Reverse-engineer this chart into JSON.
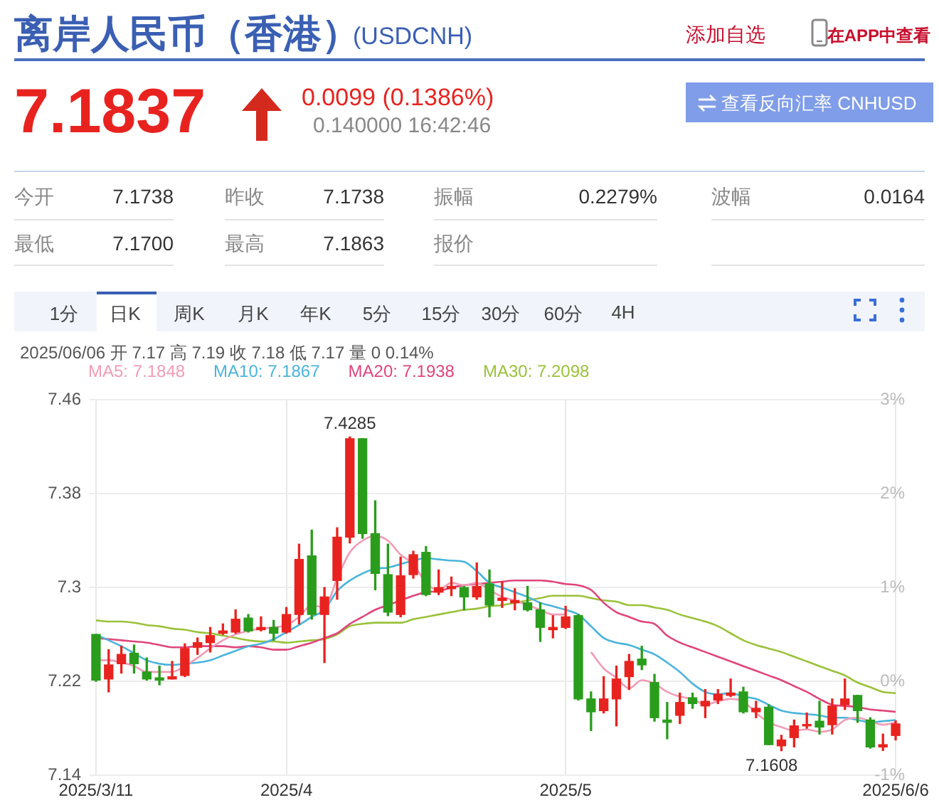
{
  "chart_data": {
    "type": "candlestick",
    "title": "离岸人民币（香港）",
    "subtitle": "(USDCNH)",
    "annotations": [
      "添加自选",
      "在APP中查看",
      "7.1837",
      "0.0099 (0.1386%)",
      "0.140000 16:42:46",
      "查看反向汇率 CNHUSD",
      "今开",
      "7.1738",
      "昨收",
      "7.1738",
      "振幅",
      "0.2279%",
      "波幅",
      "0.0164",
      "最低",
      "7.1700",
      "最高",
      "7.1863",
      "报价",
      "1分",
      "日K",
      "周K",
      "月K",
      "年K",
      "5分",
      "15分",
      "30分",
      "60分",
      "4H",
      "2025/06/06 开 7.17 高 7.19 收 7.18 低 7.17 量 0 0.14%",
      {
        "text": "7.4285",
        "y": 7.4285
      },
      "7.1608"
    ],
    "categories": [
      "2025/3/11",
      null,
      null,
      null,
      null,
      null,
      null,
      null,
      null,
      null,
      null,
      null,
      null,
      null,
      null,
      "2025/4",
      null,
      null,
      null,
      null,
      null,
      null,
      null,
      null,
      null,
      null,
      null,
      null,
      null,
      null,
      null,
      null,
      null,
      null,
      null,
      null,
      null,
      "2025/5",
      null,
      null,
      null,
      null,
      null,
      null,
      null,
      null,
      null,
      null,
      null,
      null,
      null,
      null,
      null,
      null,
      null,
      null,
      null,
      null,
      null,
      null,
      null,
      null,
      null,
      "2025/6/6"
    ],
    "series": [
      {
        "ohlc": [
          [
            7.26,
            7.26,
            7.22,
            7.221
          ],
          [
            7.222,
            7.247,
            7.211,
            7.234
          ],
          [
            7.235,
            7.25,
            7.227,
            7.243
          ],
          [
            7.244,
            7.251,
            7.227,
            7.235
          ],
          [
            7.228,
            7.24,
            7.221,
            7.222
          ],
          [
            7.223,
            7.233,
            7.217,
            7.221
          ],
          [
            7.222,
            7.237,
            7.222,
            7.224
          ],
          [
            7.225,
            7.252,
            7.224,
            7.248
          ],
          [
            7.249,
            7.257,
            7.243,
            7.253
          ],
          [
            7.253,
            7.266,
            7.245,
            7.259
          ],
          [
            7.261,
            7.269,
            7.26,
            7.263
          ],
          [
            7.262,
            7.281,
            7.261,
            7.273
          ],
          [
            7.274,
            7.277,
            7.262,
            7.263
          ],
          [
            7.264,
            7.275,
            7.263,
            7.266
          ],
          [
            7.266,
            7.272,
            7.255,
            7.261
          ],
          [
            7.262,
            7.283,
            7.261,
            7.277
          ],
          [
            7.277,
            7.337,
            7.269,
            7.324
          ],
          [
            7.327,
            7.349,
            7.273,
            7.277
          ],
          [
            7.277,
            7.3,
            7.236,
            7.292
          ],
          [
            7.306,
            7.351,
            7.29,
            7.343
          ],
          [
            7.343,
            7.4285,
            7.338,
            7.427
          ],
          [
            7.427,
            7.427,
            7.342,
            7.346
          ],
          [
            7.346,
            7.374,
            7.298,
            7.312
          ],
          [
            7.311,
            7.337,
            7.276,
            7.279
          ],
          [
            7.277,
            7.326,
            7.275,
            7.31
          ],
          [
            7.311,
            7.331,
            7.308,
            7.328
          ],
          [
            7.33,
            7.335,
            7.293,
            7.294
          ],
          [
            7.296,
            7.315,
            7.294,
            7.3
          ],
          [
            7.299,
            7.309,
            7.293,
            7.301
          ],
          [
            7.3,
            7.301,
            7.281,
            7.292
          ],
          [
            7.292,
            7.321,
            7.29,
            7.301
          ],
          [
            7.303,
            7.315,
            7.275,
            7.285
          ],
          [
            7.289,
            7.305,
            7.283,
            7.291
          ],
          [
            7.287,
            7.299,
            7.281,
            7.289
          ],
          [
            7.287,
            7.301,
            7.28,
            7.281
          ],
          [
            7.281,
            7.287,
            7.254,
            7.266
          ],
          [
            7.264,
            7.276,
            7.257,
            7.266
          ],
          [
            7.266,
            7.284,
            7.265,
            7.275
          ],
          [
            7.276,
            7.277,
            7.204,
            7.205
          ],
          [
            7.205,
            7.211,
            7.178,
            7.194
          ],
          [
            7.195,
            7.224,
            7.193,
            7.205
          ],
          [
            7.205,
            7.233,
            7.182,
            7.222
          ],
          [
            7.224,
            7.243,
            7.213,
            7.237
          ],
          [
            7.239,
            7.25,
            7.23,
            7.234
          ],
          [
            7.219,
            7.226,
            7.186,
            7.189
          ],
          [
            7.187,
            7.202,
            7.171,
            7.185
          ],
          [
            7.191,
            7.21,
            7.184,
            7.202
          ],
          [
            7.206,
            7.21,
            7.197,
            7.201
          ],
          [
            7.199,
            7.213,
            7.189,
            7.203
          ],
          [
            7.204,
            7.213,
            7.201,
            7.209
          ],
          [
            7.208,
            7.222,
            7.207,
            7.21
          ],
          [
            7.211,
            7.215,
            7.193,
            7.194
          ],
          [
            7.194,
            7.203,
            7.189,
            7.197
          ],
          [
            7.198,
            7.2,
            7.166,
            7.166
          ],
          [
            7.165,
            7.174,
            7.1608,
            7.17
          ],
          [
            7.172,
            7.187,
            7.164,
            7.182
          ],
          [
            7.182,
            7.193,
            7.18,
            7.183
          ],
          [
            7.186,
            7.203,
            7.175,
            7.181
          ],
          [
            7.183,
            7.205,
            7.175,
            7.199
          ],
          [
            7.2,
            7.222,
            7.196,
            7.205
          ],
          [
            7.208,
            7.208,
            7.185,
            7.195
          ],
          [
            7.187,
            7.189,
            7.163,
            7.164
          ],
          [
            7.164,
            7.175,
            7.161,
            7.166
          ],
          [
            7.1738,
            7.1863,
            7.17,
            7.1837
          ]
        ],
        "colors": [
          "#2a9d1c",
          "#e8231f",
          "#e8231f",
          "#2a9d1c",
          "#2a9d1c",
          "#2a9d1c",
          "#e8231f",
          "#e8231f",
          "#e8231f",
          "#e8231f",
          "#e8231f",
          "#e8231f",
          "#2a9d1c",
          "#e8231f",
          "#2a9d1c",
          "#e8231f",
          "#e8231f",
          "#2a9d1c",
          "#e8231f",
          "#e8231f",
          "#e8231f",
          "#2a9d1c",
          "#2a9d1c",
          "#2a9d1c",
          "#e8231f",
          "#e8231f",
          "#2a9d1c",
          "#e8231f",
          "#e8231f",
          "#2a9d1c",
          "#e8231f",
          "#2a9d1c",
          "#e8231f",
          "#e8231f",
          "#2a9d1c",
          "#2a9d1c",
          "#e8231f",
          "#e8231f",
          "#2a9d1c",
          "#2a9d1c",
          "#e8231f",
          "#e8231f",
          "#e8231f",
          "#2a9d1c",
          "#2a9d1c",
          "#2a9d1c",
          "#e8231f",
          "#2a9d1c",
          "#e8231f",
          "#e8231f",
          "#e8231f",
          "#2a9d1c",
          "#e8231f",
          "#2a9d1c",
          "#e8231f",
          "#e8231f",
          "#e8231f",
          "#2a9d1c",
          "#e8231f",
          "#e8231f",
          "#2a9d1c",
          "#2a9d1c",
          "#e8231f",
          "#e8231f"
        ]
      },
      {
        "type": "line",
        "name": "MA5: 7.1848",
        "color": "#f19cb5",
        "values": [
          7.238,
          7.238,
          7.236,
          7.233,
          7.228,
          7.228,
          7.228,
          7.233,
          7.24,
          7.248,
          7.255,
          7.26,
          7.263,
          7.265,
          7.266,
          7.268,
          7.275,
          7.285,
          7.283,
          7.308,
          7.33,
          7.34,
          7.344,
          7.34,
          7.328,
          7.32,
          7.304,
          7.298,
          7.304,
          7.302,
          7.304,
          7.298,
          7.292,
          7.289,
          7.285,
          7.281,
          7.277,
          7.277,
          null,
          7.245,
          7.231,
          7.223,
          7.214,
          7.221,
          7.218,
          7.211,
          7.207,
          7.205,
          7.2,
          7.203,
          7.205,
          7.203,
          7.193,
          7.185,
          7.181,
          7.178,
          7.179,
          7.177,
          7.179,
          7.187,
          7.189,
          7.186,
          7.183,
          7.185
        ]
      },
      {
        "type": "line",
        "name": "MA10: 7.1867",
        "color": "#4bb4dc",
        "values": [
          7.26,
          7.255,
          7.25,
          7.244,
          7.238,
          7.235,
          7.234,
          7.235,
          7.236,
          7.238,
          7.242,
          7.246,
          7.25,
          7.252,
          7.256,
          7.262,
          7.268,
          7.275,
          7.281,
          7.297,
          7.306,
          7.312,
          7.316,
          7.317,
          7.32,
          7.323,
          7.325,
          7.324,
          7.323,
          7.322,
          7.314,
          7.304,
          7.3,
          7.296,
          7.292,
          7.287,
          7.284,
          7.281,
          7.277,
          7.267,
          7.257,
          7.253,
          7.251,
          7.247,
          7.243,
          7.236,
          7.228,
          7.218,
          7.211,
          7.209,
          7.21,
          7.207,
          7.205,
          7.2,
          7.195,
          7.193,
          7.192,
          7.191,
          7.189,
          7.189,
          7.187,
          7.185,
          7.186,
          7.187
        ]
      },
      {
        "type": "line",
        "name": "MA20: 7.1938",
        "color": "#e0457b",
        "values": [
          7.257,
          7.256,
          7.255,
          7.254,
          7.253,
          7.251,
          7.249,
          7.249,
          7.25,
          7.25,
          7.25,
          7.249,
          7.25,
          7.249,
          7.247,
          7.247,
          7.25,
          7.253,
          7.257,
          7.261,
          7.269,
          7.275,
          7.281,
          7.285,
          7.289,
          7.293,
          7.296,
          7.297,
          7.3,
          7.302,
          7.303,
          7.304,
          7.305,
          7.306,
          7.306,
          7.306,
          7.305,
          7.303,
          7.302,
          7.298,
          7.287,
          7.279,
          7.275,
          7.271,
          7.269,
          7.259,
          7.253,
          7.249,
          7.245,
          7.241,
          7.237,
          7.233,
          7.229,
          7.225,
          7.221,
          7.216,
          7.211,
          7.205,
          7.2,
          7.199,
          7.198,
          7.196,
          7.195,
          7.194
        ]
      },
      {
        "type": "line",
        "name": "MA30: 7.2098",
        "color": "#9ac23a",
        "values": [
          7.272,
          7.271,
          7.271,
          7.27,
          7.268,
          7.267,
          7.265,
          7.264,
          7.262,
          7.261,
          7.259,
          7.257,
          7.255,
          7.254,
          7.254,
          7.253,
          7.254,
          7.255,
          7.256,
          7.26,
          7.267,
          7.269,
          7.27,
          7.27,
          7.27,
          7.273,
          7.275,
          7.277,
          7.279,
          7.281,
          7.282,
          7.284,
          7.285,
          7.287,
          7.289,
          7.291,
          7.293,
          7.293,
          7.293,
          7.291,
          7.289,
          7.288,
          7.285,
          7.285,
          7.283,
          7.281,
          7.277,
          7.274,
          7.271,
          7.267,
          7.261,
          7.255,
          7.251,
          7.248,
          7.245,
          7.241,
          7.237,
          7.233,
          7.229,
          7.225,
          7.219,
          7.215,
          7.211,
          7.21
        ]
      }
    ],
    "ylim": [
      7.14,
      7.46
    ],
    "yticks": [
      7.14,
      7.22,
      7.3,
      7.38,
      7.46
    ],
    "y2lim": [
      -1,
      3
    ],
    "y2ticks": [
      {
        "value": -1,
        "label": "-1%"
      },
      {
        "value": 0,
        "label": "0%"
      },
      {
        "value": 1,
        "label": "1%"
      },
      {
        "value": 2,
        "label": "2%"
      },
      {
        "value": 3,
        "label": "3%"
      }
    ],
    "grid": true,
    "legend": "top left",
    "marker": "none"
  }
}
